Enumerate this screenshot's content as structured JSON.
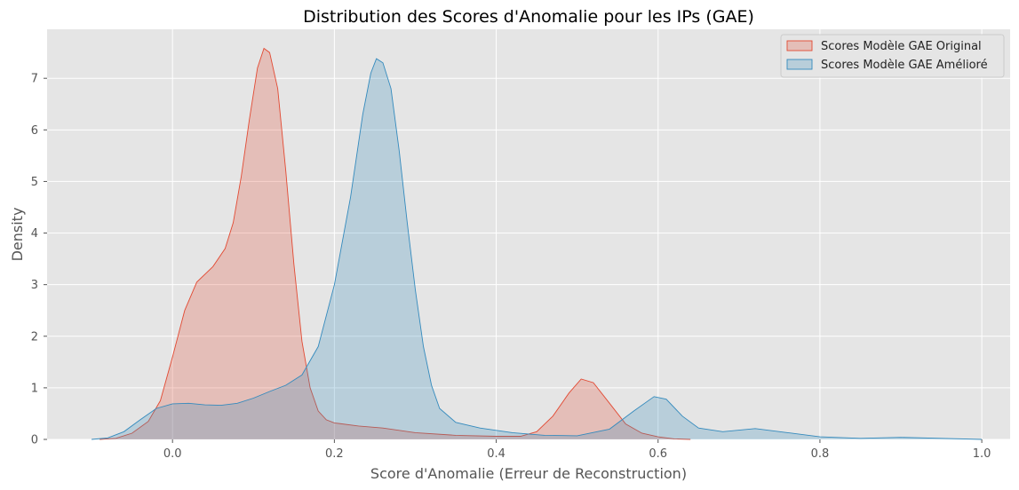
{
  "chart_data": {
    "type": "area",
    "title": "Distribution des Scores d'Anomalie pour les IPs (GAE)",
    "xlabel": "Score d'Anomalie (Erreur de Reconstruction)",
    "ylabel": "Density",
    "xlim": [
      -0.155,
      1.035
    ],
    "ylim": [
      0,
      7.95
    ],
    "xticks": [
      0.0,
      0.2,
      0.4,
      0.6,
      0.8,
      1.0
    ],
    "xtick_labels": [
      "0.0",
      "0.2",
      "0.4",
      "0.6",
      "0.8",
      "1.0"
    ],
    "yticks": [
      0,
      1,
      2,
      3,
      4,
      5,
      6,
      7
    ],
    "ytick_labels": [
      "0",
      "1",
      "2",
      "3",
      "4",
      "5",
      "6",
      "7"
    ],
    "grid": true,
    "legend_position": "top-right",
    "background": "#e5e5e5",
    "series": [
      {
        "name": "Scores Modèle GAE Original",
        "color": "#e24a33",
        "points": [
          [
            -0.09,
            0.0
          ],
          [
            -0.07,
            0.02
          ],
          [
            -0.05,
            0.12
          ],
          [
            -0.03,
            0.35
          ],
          [
            -0.015,
            0.75
          ],
          [
            0.0,
            1.6
          ],
          [
            0.015,
            2.5
          ],
          [
            0.03,
            3.05
          ],
          [
            0.05,
            3.35
          ],
          [
            0.065,
            3.7
          ],
          [
            0.075,
            4.2
          ],
          [
            0.085,
            5.1
          ],
          [
            0.095,
            6.2
          ],
          [
            0.105,
            7.2
          ],
          [
            0.113,
            7.58
          ],
          [
            0.12,
            7.5
          ],
          [
            0.13,
            6.8
          ],
          [
            0.14,
            5.2
          ],
          [
            0.15,
            3.4
          ],
          [
            0.16,
            1.9
          ],
          [
            0.17,
            1.0
          ],
          [
            0.18,
            0.55
          ],
          [
            0.19,
            0.38
          ],
          [
            0.2,
            0.32
          ],
          [
            0.23,
            0.26
          ],
          [
            0.26,
            0.22
          ],
          [
            0.3,
            0.13
          ],
          [
            0.35,
            0.08
          ],
          [
            0.4,
            0.06
          ],
          [
            0.43,
            0.06
          ],
          [
            0.45,
            0.15
          ],
          [
            0.47,
            0.45
          ],
          [
            0.49,
            0.9
          ],
          [
            0.505,
            1.17
          ],
          [
            0.52,
            1.1
          ],
          [
            0.54,
            0.7
          ],
          [
            0.56,
            0.3
          ],
          [
            0.58,
            0.12
          ],
          [
            0.6,
            0.05
          ],
          [
            0.62,
            0.01
          ],
          [
            0.64,
            0.0
          ]
        ]
      },
      {
        "name": "Scores Modèle GAE Amélioré",
        "color": "#348abd",
        "points": [
          [
            -0.1,
            0.0
          ],
          [
            -0.08,
            0.03
          ],
          [
            -0.06,
            0.15
          ],
          [
            -0.04,
            0.38
          ],
          [
            -0.02,
            0.6
          ],
          [
            0.0,
            0.69
          ],
          [
            0.02,
            0.7
          ],
          [
            0.04,
            0.67
          ],
          [
            0.06,
            0.66
          ],
          [
            0.08,
            0.7
          ],
          [
            0.1,
            0.8
          ],
          [
            0.12,
            0.93
          ],
          [
            0.14,
            1.05
          ],
          [
            0.16,
            1.25
          ],
          [
            0.18,
            1.8
          ],
          [
            0.2,
            3.0
          ],
          [
            0.22,
            4.7
          ],
          [
            0.235,
            6.3
          ],
          [
            0.245,
            7.1
          ],
          [
            0.252,
            7.38
          ],
          [
            0.26,
            7.3
          ],
          [
            0.27,
            6.8
          ],
          [
            0.28,
            5.6
          ],
          [
            0.29,
            4.2
          ],
          [
            0.3,
            2.9
          ],
          [
            0.31,
            1.8
          ],
          [
            0.32,
            1.05
          ],
          [
            0.33,
            0.6
          ],
          [
            0.35,
            0.33
          ],
          [
            0.38,
            0.22
          ],
          [
            0.42,
            0.13
          ],
          [
            0.46,
            0.08
          ],
          [
            0.5,
            0.07
          ],
          [
            0.54,
            0.2
          ],
          [
            0.57,
            0.55
          ],
          [
            0.595,
            0.83
          ],
          [
            0.61,
            0.78
          ],
          [
            0.63,
            0.45
          ],
          [
            0.65,
            0.22
          ],
          [
            0.68,
            0.15
          ],
          [
            0.72,
            0.21
          ],
          [
            0.76,
            0.13
          ],
          [
            0.8,
            0.05
          ],
          [
            0.85,
            0.02
          ],
          [
            0.9,
            0.04
          ],
          [
            0.95,
            0.02
          ],
          [
            1.0,
            0.0
          ]
        ]
      }
    ]
  }
}
